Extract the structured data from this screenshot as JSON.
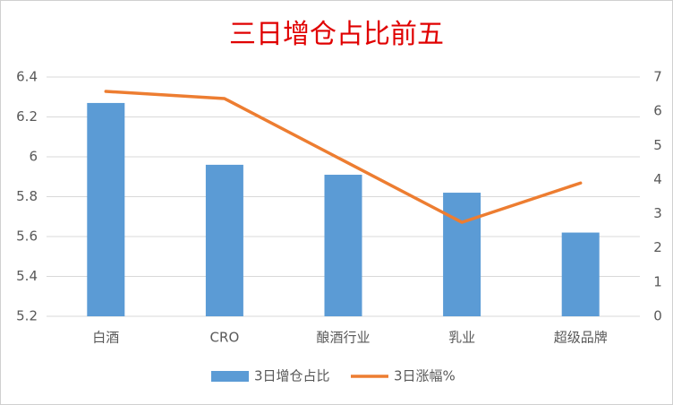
{
  "chart_data": {
    "type": "bar",
    "title": "三日增仓占比前五",
    "categories": [
      "白酒",
      "CRO",
      "酿酒行业",
      "乳业",
      "超级品牌"
    ],
    "series": [
      {
        "name": "3日增仓占比",
        "type": "bar",
        "color": "#5b9bd5",
        "values": [
          6.27,
          5.96,
          5.91,
          5.82,
          5.62
        ]
      },
      {
        "name": "3日涨幅%",
        "type": "line",
        "axis": "y2",
        "color": "#ed7d31",
        "values": [
          6.58,
          6.37,
          4.56,
          2.75,
          3.9
        ]
      }
    ],
    "ylim": [
      5.2,
      6.4
    ],
    "yticks": [
      5.2,
      5.4,
      5.6,
      5.8,
      6,
      6.2,
      6.4
    ],
    "y2lim": [
      0,
      7
    ],
    "y2ticks": [
      0,
      1,
      2,
      3,
      4,
      5,
      6,
      7
    ],
    "grid": true,
    "legend": "bottom"
  }
}
